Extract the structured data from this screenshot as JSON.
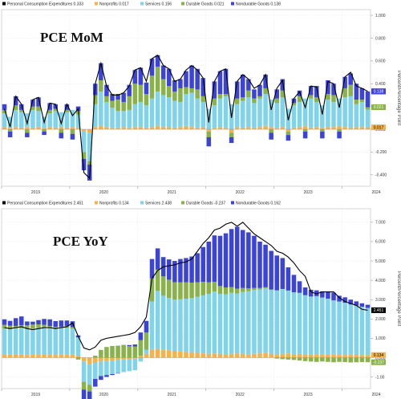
{
  "colors": {
    "pce_line": "#000000",
    "nonprofits": "#f5b14c",
    "services": "#7fd3ea",
    "durable": "#8ab24a",
    "nondurable": "#3c44d8",
    "bg_grid": "#e6e6e6"
  },
  "chart_data": [
    {
      "type": "bar",
      "title": "PCE MoM",
      "ylabel": "Percent/Percentage Point",
      "ylim": [
        -0.5,
        1.05
      ],
      "yticks": [
        -0.4,
        -0.2,
        0.0,
        0.2,
        0.4,
        0.6,
        0.8,
        1.0
      ],
      "ytick_labels": [
        "-0.400",
        "-0.200",
        "0.000",
        "0.200",
        "0.400",
        "0.600",
        "0.800",
        "1.000"
      ],
      "year_labels": [
        "2019",
        "2020",
        "2021",
        "2022",
        "2023",
        "2024"
      ],
      "year_start_index": [
        0,
        12,
        24,
        36,
        48,
        60
      ],
      "legend": [
        {
          "label": "Personal Consumption Expenditures",
          "value": "0.333",
          "color": "#000000"
        },
        {
          "label": "Nonprofits",
          "value": "0.017",
          "color": "#f5b14c"
        },
        {
          "label": "Services",
          "value": "0.156",
          "color": "#7fd3ea"
        },
        {
          "label": "Durable Goods",
          "value": "0.021",
          "color": "#8ab24a"
        },
        {
          "label": "Nondurable Goods",
          "value": "0.138",
          "color": "#3c44d8"
        }
      ],
      "last_labels": [
        {
          "value": "0.333",
          "series": "pce",
          "color": "#000000"
        },
        {
          "value": "0.138",
          "series": "nondurable",
          "color": "#3c44d8"
        },
        {
          "value": "0.021",
          "series": "durable",
          "color": "#8ab24a"
        },
        {
          "value": "0.017",
          "series": "nonprofits",
          "color": "#f5b14c"
        }
      ],
      "series": [
        {
          "name": "Nonprofits",
          "key": "nonprofits",
          "values": [
            0.02,
            0.01,
            0.02,
            0.01,
            0.02,
            0.01,
            0.02,
            0.01,
            0.02,
            0.01,
            0.02,
            0.01,
            0.02,
            0.01,
            -0.02,
            -0.03,
            0.02,
            0.03,
            0.02,
            0.01,
            0.01,
            0.02,
            0.01,
            0.02,
            0.02,
            0.01,
            0.02,
            0.03,
            0.02,
            0.02,
            0.01,
            0.02,
            0.03,
            0.02,
            0.01,
            0.02,
            -0.02,
            0.01,
            0.02,
            0.01,
            -0.03,
            0.02,
            0.01,
            0.02,
            0.01,
            0.02,
            0.03,
            0.02,
            0.01,
            0.02,
            -0.02,
            0.01,
            0.02,
            0.03,
            0.01,
            0.02,
            0.01,
            0.02,
            0.02,
            0.03,
            0.02,
            0.01,
            0.02,
            0.02,
            0.017
          ]
        },
        {
          "name": "Services",
          "key": "services",
          "values": [
            0.12,
            0.1,
            0.15,
            0.14,
            0.12,
            0.16,
            0.14,
            0.1,
            0.12,
            0.15,
            0.13,
            0.14,
            0.15,
            0.12,
            -0.18,
            -0.25,
            0.2,
            0.3,
            0.22,
            0.18,
            0.15,
            0.14,
            0.16,
            0.2,
            0.22,
            0.2,
            0.25,
            0.3,
            0.28,
            0.26,
            0.24,
            0.22,
            0.28,
            0.3,
            0.26,
            0.22,
            0.18,
            0.2,
            0.25,
            0.28,
            0.22,
            0.2,
            0.24,
            0.26,
            0.22,
            0.25,
            0.28,
            0.24,
            0.22,
            0.26,
            0.18,
            0.2,
            0.22,
            0.24,
            0.26,
            0.22,
            0.2,
            0.24,
            0.22,
            0.24,
            0.26,
            0.28,
            0.2,
            0.22,
            0.156
          ]
        },
        {
          "name": "Durable Goods",
          "key": "durable",
          "values": [
            0.03,
            -0.02,
            0.04,
            0.02,
            -0.03,
            0.03,
            0.04,
            -0.02,
            0.03,
            0.02,
            -0.03,
            0.02,
            -0.04,
            0.03,
            -0.06,
            -0.03,
            0.08,
            0.1,
            0.05,
            0.06,
            0.1,
            0.08,
            0.12,
            0.18,
            0.15,
            0.1,
            0.2,
            0.22,
            0.14,
            0.1,
            0.08,
            0.12,
            0.06,
            0.04,
            0.08,
            0.05,
            -0.05,
            0.06,
            0.04,
            0.02,
            -0.04,
            0.05,
            0.03,
            0.06,
            0.04,
            0.02,
            0.05,
            -0.03,
            0.04,
            0.06,
            -0.03,
            0.02,
            0.05,
            -0.02,
            0.03,
            0.04,
            -0.02,
            0.05,
            0.06,
            -0.02,
            0.08,
            0.1,
            0.04,
            0.02,
            0.021
          ]
        },
        {
          "name": "Nondurable Goods",
          "key": "nondurable",
          "values": [
            0.05,
            -0.05,
            0.08,
            0.05,
            -0.04,
            0.06,
            0.08,
            -0.03,
            0.06,
            0.04,
            -0.05,
            0.05,
            -0.05,
            0.04,
            -0.1,
            -0.14,
            0.1,
            0.15,
            0.1,
            0.06,
            0.05,
            0.08,
            0.1,
            0.12,
            0.15,
            0.1,
            0.15,
            0.1,
            0.12,
            0.15,
            0.1,
            0.08,
            0.14,
            0.2,
            0.18,
            0.16,
            -0.08,
            0.15,
            0.2,
            0.22,
            -0.05,
            0.15,
            0.2,
            0.1,
            0.08,
            0.1,
            0.12,
            -0.06,
            0.08,
            0.1,
            -0.05,
            0.04,
            0.05,
            -0.06,
            0.08,
            0.1,
            -0.06,
            0.12,
            0.1,
            -0.06,
            0.1,
            0.1,
            0.14,
            0.1,
            0.138
          ]
        },
        {
          "name": "Personal Consumption Expenditures",
          "key": "pce",
          "values": [
            0.18,
            0.02,
            0.29,
            0.22,
            0.05,
            0.26,
            0.28,
            0.06,
            0.23,
            0.22,
            0.05,
            0.22,
            0.12,
            0.18,
            -0.38,
            -0.43,
            0.4,
            0.58,
            0.38,
            0.3,
            0.3,
            0.32,
            0.38,
            0.52,
            0.54,
            0.42,
            0.62,
            0.65,
            0.56,
            0.53,
            0.42,
            0.44,
            0.52,
            0.56,
            0.52,
            0.45,
            0.06,
            0.42,
            0.51,
            0.53,
            0.1,
            0.42,
            0.48,
            0.44,
            0.36,
            0.39,
            0.48,
            0.17,
            0.36,
            0.43,
            0.08,
            0.27,
            0.33,
            0.19,
            0.38,
            0.37,
            0.13,
            0.42,
            0.4,
            0.19,
            0.46,
            0.5,
            0.38,
            0.36,
            0.333
          ]
        }
      ]
    },
    {
      "type": "bar",
      "title": "PCE YoY",
      "ylabel": "Percent/Percentage Point",
      "ylim": [
        -1.6,
        7.7
      ],
      "yticks": [
        -1.0,
        0.0,
        1.0,
        2.0,
        3.0,
        4.0,
        5.0,
        6.0,
        7.0
      ],
      "ytick_labels": [
        "-1.00",
        "0.000",
        "1.000",
        "2.000",
        "3.000",
        "4.000",
        "5.000",
        "6.000",
        "7.000"
      ],
      "year_labels": [
        "2019",
        "2020",
        "2021",
        "2022",
        "2023",
        "2024"
      ],
      "year_start_index": [
        0,
        12,
        24,
        36,
        48,
        60
      ],
      "legend": [
        {
          "label": "Personal Consumption Expenditures",
          "value": "2.451",
          "color": "#000000"
        },
        {
          "label": "Nonprofits",
          "value": "0.134",
          "color": "#f5b14c"
        },
        {
          "label": "Services",
          "value": "2.438",
          "color": "#7fd3ea"
        },
        {
          "label": "Durable Goods",
          "value": "-0.237",
          "color": "#8ab24a"
        },
        {
          "label": "Nondurable Goods",
          "value": "0.162",
          "color": "#3c44d8"
        }
      ],
      "last_labels": [
        {
          "value": "2.451",
          "series": "pce",
          "color": "#000000"
        },
        {
          "value": "0.134",
          "series": "nonprofits",
          "color": "#f5b14c"
        },
        {
          "value": "-0.237",
          "series": "durable",
          "color": "#8ab24a"
        }
      ],
      "series": [
        {
          "name": "Nonprofits",
          "key": "nonprofits",
          "values": [
            0.15,
            0.15,
            0.16,
            0.15,
            0.14,
            0.15,
            0.16,
            0.15,
            0.15,
            0.14,
            0.15,
            0.16,
            0.15,
            0.1,
            -0.2,
            -0.35,
            -0.25,
            -0.2,
            -0.18,
            -0.15,
            -0.12,
            -0.1,
            -0.08,
            -0.05,
            0.1,
            0.2,
            0.4,
            0.45,
            0.4,
            0.38,
            0.35,
            0.32,
            0.3,
            0.28,
            0.25,
            0.22,
            0.2,
            0.22,
            0.2,
            0.18,
            0.2,
            0.22,
            0.2,
            0.18,
            0.2,
            0.22,
            0.24,
            0.2,
            0.18,
            0.2,
            0.22,
            0.18,
            0.2,
            0.18,
            0.16,
            0.18,
            0.16,
            0.15,
            0.16,
            0.15,
            0.14,
            0.15,
            0.14,
            0.13,
            0.134
          ]
        },
        {
          "name": "Services",
          "key": "services",
          "values": [
            1.35,
            1.32,
            1.36,
            1.38,
            1.35,
            1.36,
            1.38,
            1.4,
            1.36,
            1.35,
            1.37,
            1.38,
            1.35,
            0.95,
            -1.05,
            -1.05,
            -0.85,
            -0.75,
            -0.72,
            -0.7,
            -0.68,
            -0.65,
            -0.62,
            -0.6,
            -0.2,
            0.2,
            2.5,
            3.0,
            2.8,
            2.7,
            2.65,
            2.7,
            2.75,
            2.8,
            2.9,
            3.0,
            3.1,
            3.2,
            3.1,
            3.1,
            3.15,
            3.1,
            3.2,
            3.25,
            3.3,
            3.3,
            3.35,
            3.3,
            3.3,
            3.35,
            3.25,
            3.2,
            3.15,
            3.05,
            3.0,
            3.0,
            2.95,
            2.9,
            2.8,
            2.75,
            2.7,
            2.6,
            2.55,
            2.5,
            2.438
          ]
        },
        {
          "name": "Durable Goods",
          "key": "durable",
          "values": [
            0.2,
            0.18,
            0.12,
            0.15,
            0.18,
            0.2,
            0.18,
            0.15,
            0.12,
            0.1,
            0.08,
            0.1,
            0.08,
            -0.1,
            -0.4,
            -0.35,
            0.1,
            0.4,
            0.55,
            0.6,
            0.62,
            0.65,
            0.6,
            0.58,
            0.8,
            0.9,
            1.2,
            1.1,
            1.0,
            0.95,
            0.9,
            0.88,
            0.85,
            0.8,
            0.75,
            0.7,
            0.6,
            0.5,
            0.4,
            0.35,
            0.3,
            0.25,
            0.2,
            0.15,
            0.1,
            0.08,
            0.05,
            0.02,
            -0.05,
            -0.08,
            -0.1,
            -0.12,
            -0.15,
            -0.18,
            -0.2,
            -0.22,
            -0.2,
            -0.22,
            -0.24,
            -0.22,
            -0.23,
            -0.25,
            -0.24,
            -0.23,
            -0.237
          ]
        },
        {
          "name": "Nondurable Goods",
          "key": "nondurable",
          "values": [
            0.28,
            0.25,
            0.4,
            0.45,
            0.2,
            0.15,
            0.22,
            0.3,
            0.35,
            0.3,
            0.32,
            0.28,
            0.3,
            0.1,
            -0.6,
            -0.6,
            -0.4,
            -0.2,
            -0.1,
            -0.05,
            -0.02,
            0.0,
            0.05,
            0.1,
            0.4,
            0.6,
            1.0,
            1.1,
            1.0,
            1.05,
            1.1,
            1.2,
            1.25,
            1.35,
            1.5,
            1.8,
            2.1,
            2.4,
            2.6,
            2.8,
            3.0,
            3.2,
            3.0,
            2.9,
            2.7,
            2.4,
            2.2,
            2.0,
            1.8,
            1.6,
            1.2,
            0.9,
            0.6,
            0.4,
            0.35,
            0.3,
            0.32,
            0.35,
            0.4,
            0.3,
            0.28,
            0.25,
            0.22,
            0.18,
            0.162
          ]
        },
        {
          "name": "Personal Consumption Expenditures",
          "key": "pce",
          "values": [
            1.55,
            1.5,
            1.55,
            1.6,
            1.5,
            1.45,
            1.5,
            1.55,
            1.55,
            1.5,
            1.55,
            1.6,
            1.8,
            1.1,
            0.5,
            0.4,
            0.55,
            0.9,
            1.0,
            1.05,
            1.1,
            1.15,
            1.2,
            1.3,
            1.6,
            2.1,
            4.1,
            4.5,
            4.7,
            4.75,
            4.8,
            4.9,
            4.95,
            5.1,
            5.5,
            5.9,
            6.2,
            6.6,
            6.7,
            6.9,
            7.0,
            6.8,
            7.0,
            6.7,
            6.4,
            6.2,
            6.0,
            5.8,
            5.5,
            5.4,
            5.2,
            4.9,
            4.5,
            4.2,
            3.4,
            3.3,
            3.4,
            3.4,
            3.4,
            3.1,
            2.9,
            2.8,
            2.7,
            2.5,
            2.451
          ]
        }
      ]
    }
  ]
}
